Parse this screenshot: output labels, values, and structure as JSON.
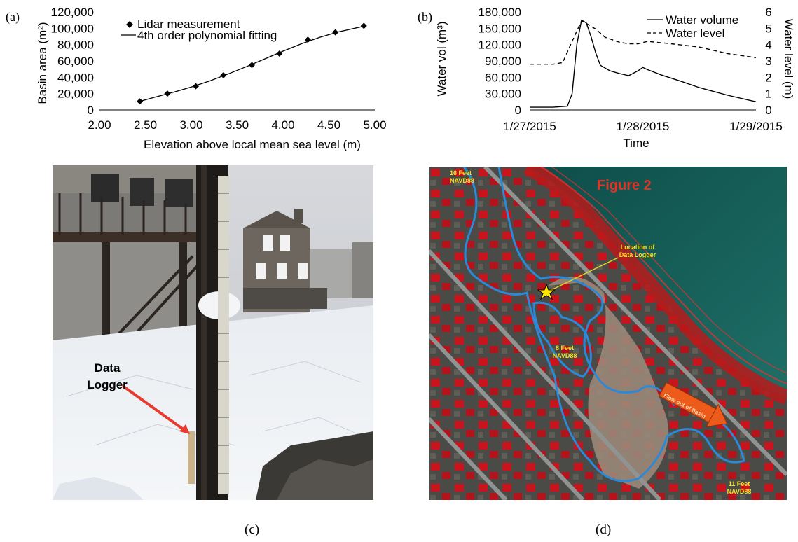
{
  "figure": {
    "panel_labels": {
      "a": "(a)",
      "b": "(b)",
      "c": "(c)",
      "d": "(d)"
    }
  },
  "panel_a": {
    "xlabel": "Elevation above local mean sea level (m)",
    "ylabel": "Basin area (m²)",
    "legend": {
      "points": "Lidar measurement",
      "fit": "4th order polynomial fitting"
    }
  },
  "panel_b": {
    "xlabel": "Time",
    "ylabel_left": "Water vol (m³)",
    "ylabel_right": "Water level (m)",
    "legend": {
      "volume": "Water volume",
      "level": "Water level"
    }
  },
  "panel_c": {
    "callout": [
      "Data",
      "Logger"
    ]
  },
  "panel_d": {
    "figure_title": "Figure 2",
    "annotation_logger": [
      "Location of",
      "Data Logger"
    ],
    "contour_16ft": [
      "16 Feet",
      "NAVD88"
    ],
    "contour_8ft": [
      "8 Feet",
      "NAVD88"
    ],
    "contour_11ft": [
      "11 Feet",
      "NAVD88"
    ],
    "flow_arrow": "Flow out of Basin"
  },
  "chart_data": [
    {
      "id": "a",
      "type": "scatter",
      "xlabel": "Elevation above local mean sea level (m)",
      "ylabel": "Basin area (m²)",
      "xlim": [
        2.0,
        5.0
      ],
      "ylim": [
        0,
        120000
      ],
      "xticks": [
        "2.00",
        "2.50",
        "3.00",
        "3.50",
        "4.00",
        "4.50",
        "5.00"
      ],
      "yticks": [
        "0",
        "20,000",
        "40,000",
        "60,000",
        "80,000",
        "100,000",
        "120,000"
      ],
      "legend_position": "top-left",
      "grid": false,
      "series": [
        {
          "name": "Lidar measurement",
          "style": "diamond-markers",
          "x": [
            2.44,
            2.74,
            3.05,
            3.35,
            3.66,
            3.96,
            4.27,
            4.57,
            4.88
          ],
          "y": [
            10500,
            20000,
            29000,
            42500,
            55000,
            69000,
            86000,
            95000,
            103000
          ]
        },
        {
          "name": "4th order polynomial fitting",
          "style": "solid-line",
          "x": [
            2.44,
            2.6,
            2.8,
            3.0,
            3.2,
            3.4,
            3.6,
            3.8,
            4.0,
            4.2,
            4.4,
            4.6,
            4.88
          ],
          "y": [
            10500,
            15500,
            21500,
            28000,
            35500,
            44000,
            53000,
            62500,
            72000,
            81000,
            89000,
            95500,
            102500
          ]
        }
      ]
    },
    {
      "id": "b",
      "type": "line",
      "xlabel": "Time",
      "ylabel": "Water vol (m³)",
      "y2label": "Water level (m)",
      "xlim": [
        "1/27/2015",
        "1/29/2015"
      ],
      "xticks": [
        "1/27/2015",
        "1/28/2015",
        "1/29/2015"
      ],
      "ylim": [
        0,
        180000
      ],
      "y2lim": [
        0,
        6
      ],
      "yticks": [
        "0",
        "30,000",
        "60,000",
        "90,000",
        "120,000",
        "150,000",
        "180,000"
      ],
      "y2ticks": [
        "0",
        "1",
        "2",
        "3",
        "4",
        "5",
        "6"
      ],
      "legend_position": "top-right",
      "grid": false,
      "series": [
        {
          "name": "Water volume",
          "axis": "left",
          "style": "solid",
          "x": [
            "1/27/2015 00:00",
            "1/27/2015 05:00",
            "1/27/2015 08:00",
            "1/27/2015 09:00",
            "1/27/2015 10:00",
            "1/27/2015 11:00",
            "1/27/2015 12:00",
            "1/27/2015 13:00",
            "1/27/2015 14:00",
            "1/27/2015 15:00",
            "1/27/2015 17:00",
            "1/27/2015 19:00",
            "1/27/2015 21:00",
            "1/27/2015 23:00",
            "1/28/2015 00:00",
            "1/28/2015 01:00",
            "1/28/2015 04:00",
            "1/28/2015 08:00",
            "1/28/2015 12:00",
            "1/28/2015 18:00",
            "1/29/2015 00:00"
          ],
          "y": [
            5000,
            5000,
            7000,
            30000,
            120000,
            165000,
            160000,
            135000,
            105000,
            82000,
            72000,
            67000,
            63000,
            72000,
            78000,
            74000,
            64000,
            53000,
            41000,
            27000,
            15000
          ]
        },
        {
          "name": "Water level",
          "axis": "right",
          "style": "dashed",
          "x": [
            "1/27/2015 00:00",
            "1/27/2015 05:00",
            "1/27/2015 07:00",
            "1/27/2015 09:00",
            "1/27/2015 11:00",
            "1/27/2015 12:00",
            "1/27/2015 14:00",
            "1/27/2015 16:00",
            "1/27/2015 19:00",
            "1/27/2015 21:00",
            "1/27/2015 23:00",
            "1/28/2015 01:00",
            "1/28/2015 06:00",
            "1/28/2015 12:00",
            "1/28/2015 18:00",
            "1/29/2015 00:00"
          ],
          "y": [
            2.8,
            2.8,
            2.9,
            4.2,
            5.45,
            5.3,
            4.95,
            4.45,
            4.15,
            4.05,
            4.05,
            4.2,
            4.05,
            3.85,
            3.45,
            3.2
          ]
        }
      ]
    }
  ]
}
